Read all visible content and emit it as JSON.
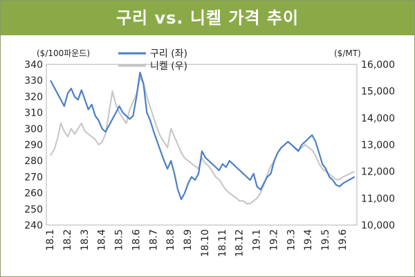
{
  "title": "구리 vs. 니켈 가격 추이",
  "chart_data": {
    "type": "line",
    "title": "구리 vs. 니켈 가격 추이",
    "left_axis": {
      "unit_label": "($/100파운드)",
      "min": 240,
      "max": 340,
      "step": 10,
      "ticks": [
        "340",
        "330",
        "320",
        "310",
        "300",
        "290",
        "280",
        "270",
        "260",
        "250",
        "240"
      ]
    },
    "right_axis": {
      "unit_label": "($/MT)",
      "min": 10000,
      "max": 16000,
      "step": 1000,
      "ticks": [
        "16,000",
        "15,000",
        "14,000",
        "13,000",
        "12,000",
        "11,000",
        "10,000"
      ]
    },
    "x_axis": {
      "start": "18.1",
      "end": "19.6.",
      "labels": [
        "18.1",
        "18.2",
        "18.3",
        "18.4",
        "18.5",
        "18.6",
        "18.7",
        "18.8",
        "18.9",
        "18.10",
        "18.11",
        "18.12",
        "19.1",
        "19.2",
        "19.3",
        "19.4",
        "19.5",
        "19.6"
      ]
    },
    "legend_position": "top-center",
    "gridlines": false,
    "series": [
      {
        "name": "구리 (좌)",
        "axis": "left",
        "color": "#4a7fc4",
        "points": [
          [
            "18.1",
            330
          ],
          [
            "18.1",
            326
          ],
          [
            "18.1",
            322
          ],
          [
            "18.1",
            318
          ],
          [
            "18.1",
            314
          ],
          [
            "18.2",
            322
          ],
          [
            "18.2",
            325
          ],
          [
            "18.2",
            320
          ],
          [
            "18.2",
            318
          ],
          [
            "18.2",
            324
          ],
          [
            "18.3",
            318
          ],
          [
            "18.3",
            312
          ],
          [
            "18.3",
            315
          ],
          [
            "18.3",
            308
          ],
          [
            "18.3",
            305
          ],
          [
            "18.4",
            300
          ],
          [
            "18.4",
            298
          ],
          [
            "18.4",
            302
          ],
          [
            "18.4",
            306
          ],
          [
            "18.4",
            310
          ],
          [
            "18.5",
            314
          ],
          [
            "18.5",
            310
          ],
          [
            "18.5",
            308
          ],
          [
            "18.5",
            306
          ],
          [
            "18.5",
            308
          ],
          [
            "18.6",
            320
          ],
          [
            "18.6",
            335
          ],
          [
            "18.6",
            328
          ],
          [
            "18.6",
            310
          ],
          [
            "18.6",
            305
          ],
          [
            "18.7",
            298
          ],
          [
            "18.7",
            292
          ],
          [
            "18.7",
            286
          ],
          [
            "18.7",
            280
          ],
          [
            "18.7",
            275
          ],
          [
            "18.8",
            280
          ],
          [
            "18.8",
            272
          ],
          [
            "18.8",
            262
          ],
          [
            "18.8",
            256
          ],
          [
            "18.8",
            260
          ],
          [
            "18.9",
            266
          ],
          [
            "18.9",
            270
          ],
          [
            "18.9",
            268
          ],
          [
            "18.9",
            272
          ],
          [
            "18.9",
            286
          ],
          [
            "18.10",
            282
          ],
          [
            "18.10",
            280
          ],
          [
            "18.10",
            278
          ],
          [
            "18.10",
            276
          ],
          [
            "18.10",
            274
          ],
          [
            "18.11",
            278
          ],
          [
            "18.11",
            276
          ],
          [
            "18.11",
            280
          ],
          [
            "18.11",
            278
          ],
          [
            "18.11",
            276
          ],
          [
            "18.12",
            274
          ],
          [
            "18.12",
            272
          ],
          [
            "18.12",
            270
          ],
          [
            "18.12",
            268
          ],
          [
            "18.12",
            272
          ],
          [
            "19.1",
            264
          ],
          [
            "19.1",
            262
          ],
          [
            "19.1",
            266
          ],
          [
            "19.1",
            270
          ],
          [
            "19.1",
            272
          ],
          [
            "19.2",
            280
          ],
          [
            "19.2",
            285
          ],
          [
            "19.2",
            288
          ],
          [
            "19.2",
            290
          ],
          [
            "19.2",
            292
          ],
          [
            "19.3",
            290
          ],
          [
            "19.3",
            288
          ],
          [
            "19.3",
            286
          ],
          [
            "19.3",
            290
          ],
          [
            "19.3",
            292
          ],
          [
            "19.4",
            294
          ],
          [
            "19.4",
            296
          ],
          [
            "19.4",
            292
          ],
          [
            "19.4",
            285
          ],
          [
            "19.4",
            278
          ],
          [
            "19.5",
            275
          ],
          [
            "19.5",
            270
          ],
          [
            "19.5",
            268
          ],
          [
            "19.5",
            265
          ],
          [
            "19.5",
            264
          ],
          [
            "19.6",
            266
          ],
          [
            "19.6",
            268
          ],
          [
            "19.6",
            270
          ]
        ]
      },
      {
        "name": "니켈 (우)",
        "axis": "right",
        "color": "#c8c8c8",
        "points": [
          [
            "18.1",
            12600
          ],
          [
            "18.1",
            12800
          ],
          [
            "18.1",
            13200
          ],
          [
            "18.1",
            13800
          ],
          [
            "18.1",
            13500
          ],
          [
            "18.2",
            13300
          ],
          [
            "18.2",
            13600
          ],
          [
            "18.2",
            13400
          ],
          [
            "18.2",
            13600
          ],
          [
            "18.2",
            13800
          ],
          [
            "18.3",
            13500
          ],
          [
            "18.3",
            13400
          ],
          [
            "18.3",
            13300
          ],
          [
            "18.3",
            13200
          ],
          [
            "18.3",
            13000
          ],
          [
            "18.4",
            13100
          ],
          [
            "18.4",
            13400
          ],
          [
            "18.4",
            14200
          ],
          [
            "18.4",
            15000
          ],
          [
            "18.4",
            14500
          ],
          [
            "18.5",
            14200
          ],
          [
            "18.5",
            14000
          ],
          [
            "18.5",
            13800
          ],
          [
            "18.5",
            14300
          ],
          [
            "18.5",
            14600
          ],
          [
            "18.6",
            14900
          ],
          [
            "18.6",
            15500
          ],
          [
            "18.6",
            15300
          ],
          [
            "18.6",
            14800
          ],
          [
            "18.6",
            14400
          ],
          [
            "18.7",
            14000
          ],
          [
            "18.7",
            13600
          ],
          [
            "18.7",
            13300
          ],
          [
            "18.7",
            13100
          ],
          [
            "18.7",
            12900
          ],
          [
            "18.8",
            13600
          ],
          [
            "18.8",
            13300
          ],
          [
            "18.8",
            13000
          ],
          [
            "18.8",
            12700
          ],
          [
            "18.8",
            12500
          ],
          [
            "18.9",
            12400
          ],
          [
            "18.9",
            12300
          ],
          [
            "18.9",
            12200
          ],
          [
            "18.9",
            12100
          ],
          [
            "18.9",
            12500
          ],
          [
            "18.10",
            12300
          ],
          [
            "18.10",
            12200
          ],
          [
            "18.10",
            12000
          ],
          [
            "18.10",
            11800
          ],
          [
            "18.10",
            11700
          ],
          [
            "18.11",
            11500
          ],
          [
            "18.11",
            11300
          ],
          [
            "18.11",
            11200
          ],
          [
            "18.11",
            11100
          ],
          [
            "18.11",
            11000
          ],
          [
            "18.12",
            10900
          ],
          [
            "18.12",
            10900
          ],
          [
            "18.12",
            10800
          ],
          [
            "18.12",
            10800
          ],
          [
            "18.12",
            10900
          ],
          [
            "19.1",
            11000
          ],
          [
            "19.1",
            11200
          ],
          [
            "19.1",
            11500
          ],
          [
            "19.1",
            11900
          ],
          [
            "19.1",
            12200
          ],
          [
            "19.2",
            12400
          ],
          [
            "19.2",
            12700
          ],
          [
            "19.2",
            12900
          ],
          [
            "19.2",
            13000
          ],
          [
            "19.2",
            13100
          ],
          [
            "19.3",
            13000
          ],
          [
            "19.3",
            12900
          ],
          [
            "19.3",
            12800
          ],
          [
            "19.3",
            12900
          ],
          [
            "19.3",
            13000
          ],
          [
            "19.4",
            12900
          ],
          [
            "19.4",
            12800
          ],
          [
            "19.4",
            12600
          ],
          [
            "19.4",
            12300
          ],
          [
            "19.4",
            12100
          ],
          [
            "19.5",
            12000
          ],
          [
            "19.5",
            11900
          ],
          [
            "19.5",
            11800
          ],
          [
            "19.5",
            11700
          ],
          [
            "19.5",
            11700
          ],
          [
            "19.6",
            11800
          ],
          [
            "19.6",
            11900
          ],
          [
            "19.6",
            12000
          ]
        ]
      }
    ]
  }
}
